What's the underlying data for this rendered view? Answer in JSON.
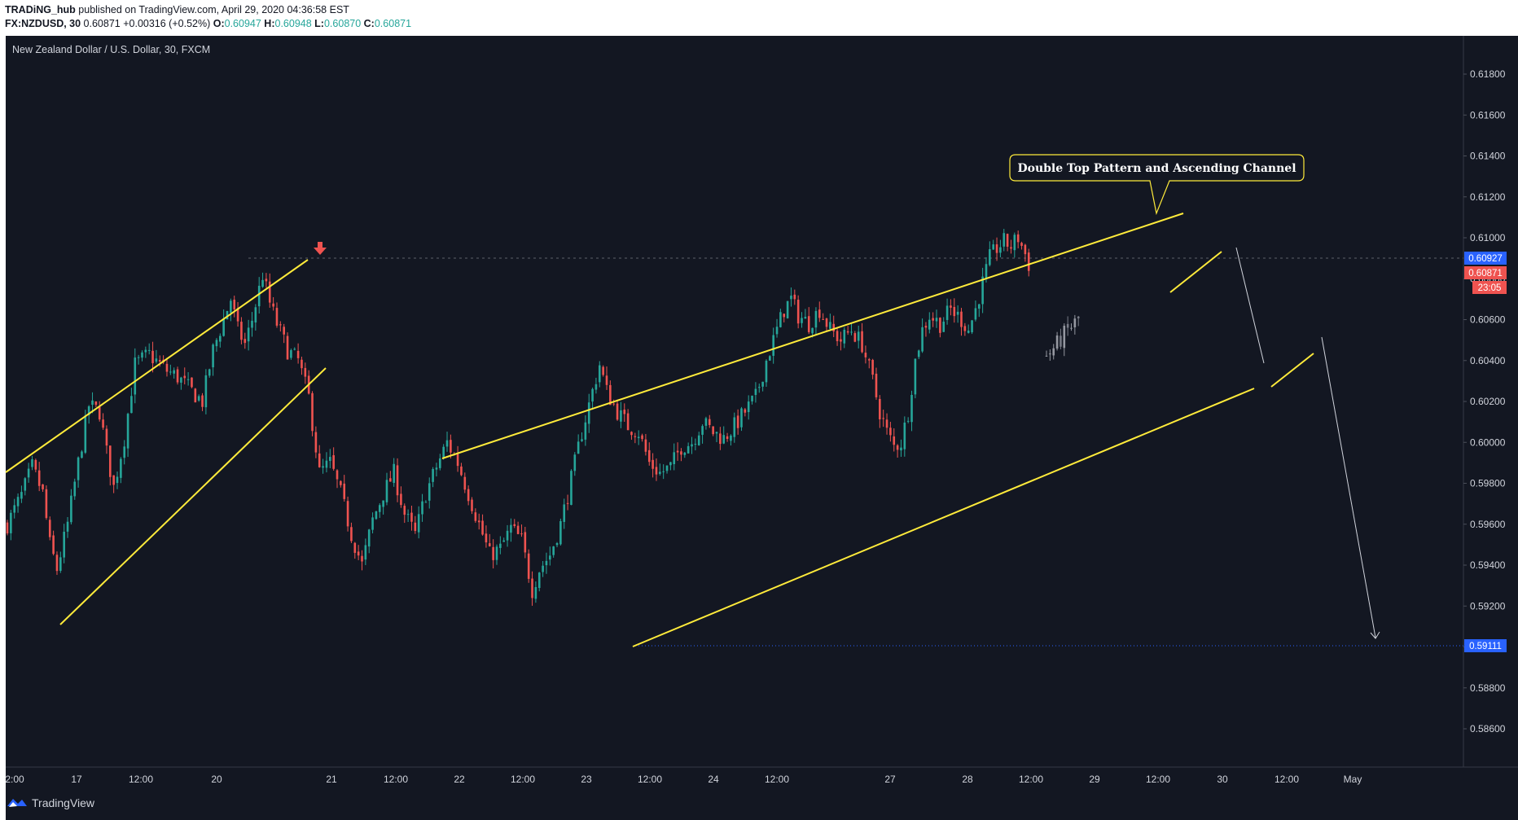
{
  "header": {
    "author": "TRADiNG_hub",
    "published_text": " published on TradingView.com, April 29, 2020 04:36:58 EST",
    "symbol_line": "FX:NZDUSD, 30 ",
    "last": "0.60871",
    "change": "+0.00316 (+0.52%)",
    "o_label": "O:",
    "o": "0.60947",
    "h_label": "H:",
    "h": "0.60948",
    "l_label": "L:",
    "l": "0.60870",
    "c_label": "C:",
    "c": "0.60871"
  },
  "chart_title": "New Zealand Dollar / U.S. Dollar, 30, FXCM",
  "annotation": "Double Top Pattern and Ascending Channel",
  "price_tags": {
    "blue_top": "0.60927",
    "red_last": "0.60871",
    "countdown": "23:05",
    "target": "0.59111"
  },
  "footer": {
    "brand": "TradingView"
  },
  "colors": {
    "background": "#131722",
    "up": "#26a69a",
    "down": "#ef5350",
    "trendline": "#ffeb3b",
    "projection": "#9598a1",
    "target_line": "#2962ff",
    "blue_tag": "#2962ff",
    "red_tag": "#ef5350"
  },
  "chart_data": {
    "type": "candlestick",
    "title": "New Zealand Dollar / U.S. Dollar, 30, FXCM",
    "timeframe": "30",
    "y_ticks": [
      0.618,
      0.616,
      0.614,
      0.612,
      0.61,
      0.608,
      0.606,
      0.604,
      0.602,
      0.6,
      0.598,
      0.596,
      0.594,
      0.592,
      0.59,
      0.588,
      0.586
    ],
    "y_tick_labels": [
      "0.61800",
      "0.61600",
      "0.61400",
      "0.61200",
      "0.61000",
      "0.60800",
      "0.60600",
      "0.60400",
      "0.60200",
      "0.60000",
      "0.59800",
      "0.59600",
      "0.59400",
      "0.59200",
      "0.59000",
      "0.58800",
      "0.58600"
    ],
    "ylim": [
      0.5855,
      0.6193
    ],
    "x_labels": [
      "2:00",
      "17",
      "12:00",
      "20",
      "21",
      "12:00",
      "22",
      "12:00",
      "23",
      "12:00",
      "24",
      "12:00",
      "27",
      "28",
      "12:00",
      "29",
      "12:00",
      "30",
      "12:00",
      "May"
    ],
    "last_ohlc": {
      "open": 0.60947,
      "high": 0.60948,
      "low": 0.6087,
      "close": 0.60871
    },
    "horizontal_levels": [
      {
        "price": 0.60927,
        "style": "dashed"
      },
      {
        "price": 0.59111,
        "style": "dotted"
      }
    ],
    "path": [
      [
        0,
        0.596
      ],
      [
        4,
        0.5974
      ],
      [
        7,
        0.5988
      ],
      [
        10,
        0.5975
      ],
      [
        12,
        0.595
      ],
      [
        14,
        0.5938
      ],
      [
        17,
        0.596
      ],
      [
        20,
        0.599
      ],
      [
        23,
        0.6018
      ],
      [
        26,
        0.6015
      ],
      [
        28,
        0.5995
      ],
      [
        30,
        0.5978
      ],
      [
        33,
        0.6002
      ],
      [
        36,
        0.6038
      ],
      [
        40,
        0.6043
      ],
      [
        45,
        0.6035
      ],
      [
        48,
        0.6032
      ],
      [
        52,
        0.6025
      ],
      [
        55,
        0.602
      ],
      [
        58,
        0.6045
      ],
      [
        61,
        0.606
      ],
      [
        63,
        0.607
      ],
      [
        65,
        0.6055
      ],
      [
        67,
        0.6048
      ],
      [
        69,
        0.606
      ],
      [
        72,
        0.6082
      ],
      [
        74,
        0.6068
      ],
      [
        76,
        0.6058
      ],
      [
        79,
        0.6045
      ],
      [
        82,
        0.604
      ],
      [
        85,
        0.6022
      ],
      [
        88,
        0.5985
      ],
      [
        91,
        0.599
      ],
      [
        94,
        0.5975
      ],
      [
        97,
        0.5955
      ],
      [
        100,
        0.594
      ],
      [
        103,
        0.5962
      ],
      [
        106,
        0.5975
      ],
      [
        109,
        0.5985
      ],
      [
        112,
        0.5965
      ],
      [
        115,
        0.5955
      ],
      [
        118,
        0.5975
      ],
      [
        121,
        0.5988
      ],
      [
        124,
        0.6
      ],
      [
        127,
        0.599
      ],
      [
        130,
        0.5975
      ],
      [
        133,
        0.596
      ],
      [
        136,
        0.5945
      ],
      [
        139,
        0.5948
      ],
      [
        142,
        0.5958
      ],
      [
        145,
        0.5952
      ],
      [
        148,
        0.5928
      ],
      [
        150,
        0.5938
      ],
      [
        153,
        0.5945
      ],
      [
        156,
        0.596
      ],
      [
        159,
        0.5982
      ],
      [
        162,
        0.6005
      ],
      [
        165,
        0.6025
      ],
      [
        167,
        0.6038
      ],
      [
        169,
        0.6025
      ],
      [
        172,
        0.6015
      ],
      [
        175,
        0.6008
      ],
      [
        178,
        0.6005
      ],
      [
        181,
        0.599
      ],
      [
        184,
        0.5985
      ],
      [
        187,
        0.5988
      ],
      [
        190,
        0.5998
      ],
      [
        193,
        0.6
      ],
      [
        196,
        0.601
      ],
      [
        199,
        0.6005
      ],
      [
        202,
        0.6002
      ],
      [
        205,
        0.6008
      ],
      [
        208,
        0.6015
      ],
      [
        211,
        0.6022
      ],
      [
        214,
        0.604
      ],
      [
        217,
        0.6055
      ],
      [
        219,
        0.6065
      ],
      [
        221,
        0.607
      ],
      [
        223,
        0.6062
      ],
      [
        226,
        0.6058
      ],
      [
        229,
        0.6065
      ],
      [
        232,
        0.6055
      ],
      [
        235,
        0.605
      ],
      [
        238,
        0.6055
      ],
      [
        241,
        0.6048
      ],
      [
        244,
        0.603
      ],
      [
        246,
        0.6015
      ],
      [
        248,
        0.6005
      ],
      [
        250,
        0.5998
      ],
      [
        252,
        0.6
      ],
      [
        254,
        0.6015
      ],
      [
        256,
        0.604
      ],
      [
        258,
        0.6055
      ],
      [
        260,
        0.6062
      ],
      [
        263,
        0.6058
      ],
      [
        266,
        0.6065
      ],
      [
        269,
        0.606
      ],
      [
        271,
        0.6055
      ],
      [
        273,
        0.6065
      ],
      [
        275,
        0.6078
      ],
      [
        277,
        0.609
      ],
      [
        279,
        0.6095
      ],
      [
        281,
        0.6098
      ],
      [
        283,
        0.6096
      ],
      [
        285,
        0.61
      ],
      [
        287,
        0.6092
      ],
      [
        288,
        0.6087
      ]
    ],
    "projection_path": [
      [
        293,
        0.6042
      ],
      [
        296,
        0.6048
      ],
      [
        299,
        0.6055
      ],
      [
        302,
        0.606
      ]
    ]
  }
}
